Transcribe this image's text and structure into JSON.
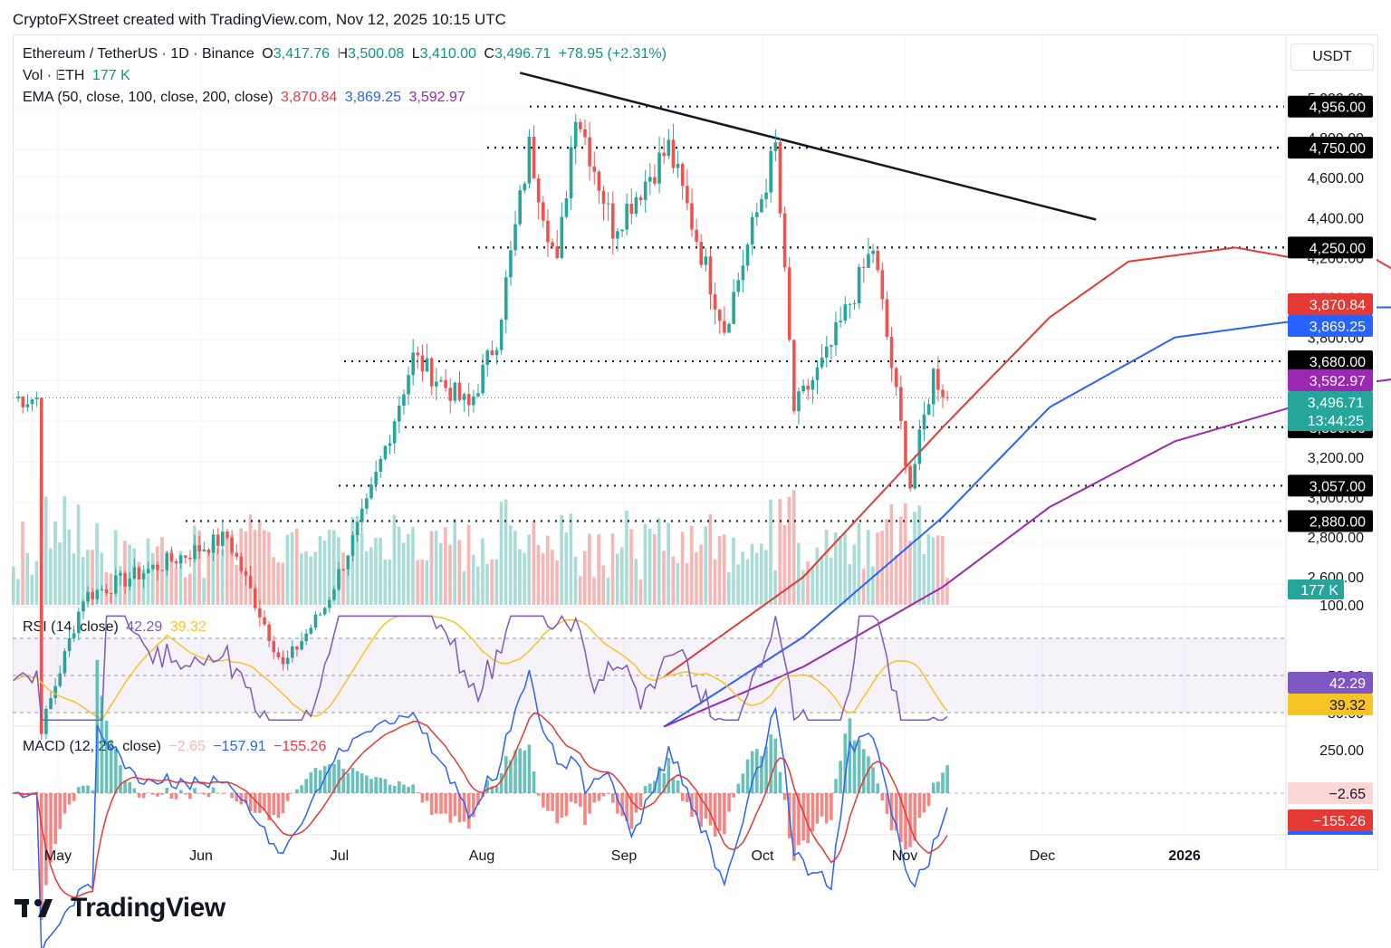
{
  "header": "CryptoFXStreet created with TradingView.com, Nov 12, 2025 10:15 UTC",
  "legend": {
    "symbol": "Ethereum / TetherUS · 1D · Binance",
    "o_label": "O",
    "open": "3,417.76",
    "h_label": "H",
    "high": "3,500.08",
    "l_label": "L",
    "low": "3,410.00",
    "c_label": "C",
    "close": "3,496.71",
    "change": "+78.95 (+2.31%)",
    "vol_label": "Vol · ETH",
    "vol": "177 K",
    "ema_label": "EMA (50, close, 100, close, 200, close)",
    "ema50": "3,870.84",
    "ema100": "3,869.25",
    "ema200": "3,592.97",
    "rsi_label": "RSI (14, close)",
    "rsi": "42.29",
    "rsi_ma": "39.32",
    "macd_label": "MACD (12, 26, close)",
    "macd_hist": "−2.65",
    "macd": "−157.91",
    "macd_signal": "−155.26"
  },
  "currency": "USDT",
  "watermark": "TradingView",
  "colors": {
    "up": "#26a69a",
    "down": "#ef5350",
    "ema50": "#e53935",
    "ema100": "#2962ff",
    "ema200": "#9c27b0",
    "rsi": "#7e57c2",
    "rsi_ma": "#f7c325",
    "text": "#131722"
  },
  "chart_data": {
    "type": "candlestick",
    "title": "Ethereum / TetherUS · 1D · Binance",
    "x_ticks": [
      "May",
      "Jun",
      "Jul",
      "Aug",
      "Sep",
      "Oct",
      "Nov",
      "Dec",
      "2026"
    ],
    "price_ticks": [
      "4,800.00",
      "4,600.00",
      "4,400.00",
      "4,200.00",
      "3,800.00",
      "3,200.00",
      "3,000.00",
      "2,800.00"
    ],
    "price_ticks_partial": [
      "5,000.00",
      "4,000.00",
      "3,600.00",
      "2,600.00"
    ],
    "horizontal_levels": [
      {
        "price": 4956,
        "label": "4,956.00"
      },
      {
        "price": 4750,
        "label": "4,750.00"
      },
      {
        "price": 4250,
        "label": "4,250.00"
      },
      {
        "price": 3680,
        "label": "3,680.00"
      },
      {
        "price": 3350,
        "label": "3,350.00"
      },
      {
        "price": 3057,
        "label": "3,057.00"
      },
      {
        "price": 2880,
        "label": "2,880.00"
      }
    ],
    "last_price": {
      "value": 3496.71,
      "label": "3,496.71",
      "countdown": "13:44:25"
    },
    "ema_tags": [
      {
        "value": 3870.84,
        "label": "3,870.84"
      },
      {
        "value": 3869.25,
        "label": "3,869.25"
      },
      {
        "value": 3592.97,
        "label": "3,592.97"
      }
    ],
    "trendline": {
      "from": {
        "date": "2025-08-12",
        "price": 5125
      },
      "to": {
        "date": "2025-12-14",
        "price": 4390
      }
    },
    "key_points": [
      {
        "date": "2025-05-01",
        "price": 1840
      },
      {
        "date": "2025-05-10",
        "price": 2500
      },
      {
        "date": "2025-06-10",
        "price": 2800
      },
      {
        "date": "2025-06-22",
        "price": 2150
      },
      {
        "date": "2025-07-01",
        "price": 2450
      },
      {
        "date": "2025-07-10",
        "price": 2950
      },
      {
        "date": "2025-07-20",
        "price": 3700
      },
      {
        "date": "2025-08-01",
        "price": 3450
      },
      {
        "date": "2025-08-07",
        "price": 3800
      },
      {
        "date": "2025-08-14",
        "price": 4750
      },
      {
        "date": "2025-08-20",
        "price": 4150
      },
      {
        "date": "2025-08-24",
        "price": 4956
      },
      {
        "date": "2025-09-01",
        "price": 4350
      },
      {
        "date": "2025-09-13",
        "price": 4750
      },
      {
        "date": "2025-09-25",
        "price": 3850
      },
      {
        "date": "2025-10-06",
        "price": 4750
      },
      {
        "date": "2025-10-10",
        "price": 3435
      },
      {
        "date": "2025-10-17",
        "price": 3700
      },
      {
        "date": "2025-10-27",
        "price": 4250
      },
      {
        "date": "2025-11-04",
        "price": 3057
      },
      {
        "date": "2025-11-09",
        "price": 3620
      },
      {
        "date": "2025-11-12",
        "price": 3496.71
      }
    ],
    "ema_series": {
      "ema50": [
        [
          140,
          2100
        ],
        [
          170,
          2600
        ],
        [
          200,
          3350
        ],
        [
          223,
          3900
        ],
        [
          240,
          4180
        ],
        [
          263,
          4250
        ],
        [
          275,
          4200
        ],
        [
          285,
          4300
        ],
        [
          300,
          4100
        ],
        [
          320,
          3870
        ]
      ],
      "ema100": [
        [
          140,
          1850
        ],
        [
          170,
          2300
        ],
        [
          200,
          2900
        ],
        [
          223,
          3450
        ],
        [
          250,
          3800
        ],
        [
          275,
          3880
        ],
        [
          285,
          3950
        ],
        [
          300,
          3950
        ],
        [
          320,
          3869
        ]
      ],
      "ema200": [
        [
          140,
          1850
        ],
        [
          170,
          2150
        ],
        [
          200,
          2550
        ],
        [
          223,
          2950
        ],
        [
          250,
          3280
        ],
        [
          275,
          3450
        ],
        [
          290,
          3570
        ],
        [
          307,
          3620
        ],
        [
          320,
          3593
        ]
      ]
    },
    "volume": {
      "last": "177 K",
      "peaks_k": [
        1000,
        900,
        800,
        700,
        650
      ]
    },
    "rsi": {
      "value": 42.29,
      "ma": 39.32,
      "levels": [
        70,
        50,
        30
      ],
      "ticks": [
        "100.00",
        "50.00",
        "30.00"
      ]
    },
    "macd": {
      "hist": -2.65,
      "macd": -157.91,
      "signal": -155.26,
      "ticks": [
        "250.00"
      ]
    }
  }
}
